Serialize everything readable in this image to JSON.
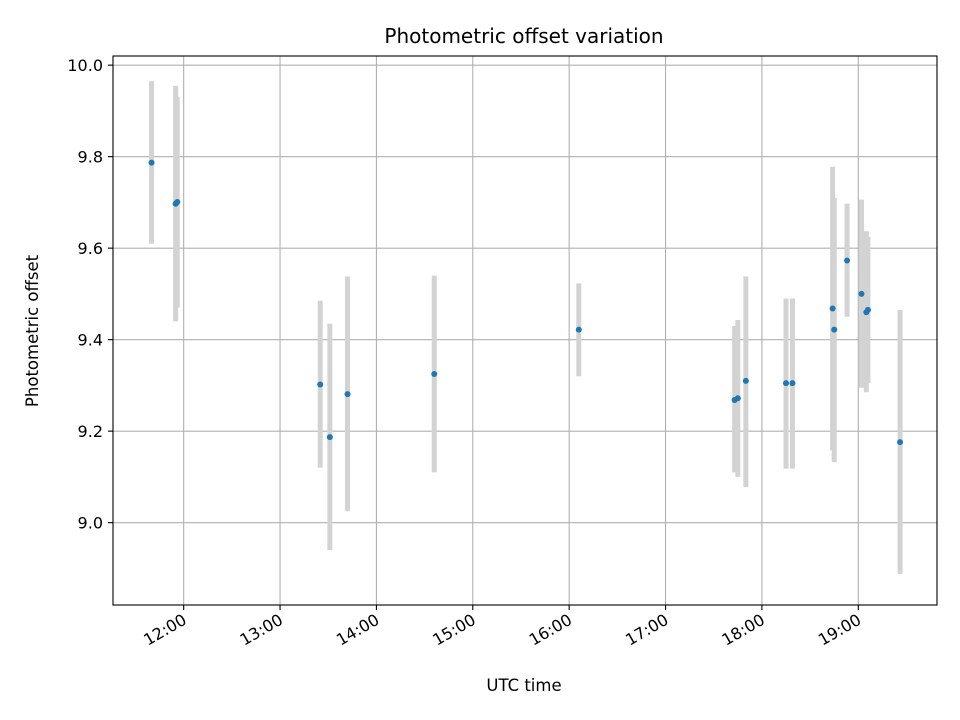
{
  "chart_data": {
    "type": "scatter",
    "title": "Photometric offset variation",
    "xlabel": "UTC time",
    "ylabel": "Photometric offset",
    "x_tick_labels": [
      "12:00",
      "13:00",
      "14:00",
      "15:00",
      "16:00",
      "17:00",
      "18:00",
      "19:00"
    ],
    "y_tick_labels": [
      "9.0",
      "9.2",
      "9.4",
      "9.6",
      "9.8",
      "10.0"
    ],
    "x_ticks": [
      "12:00",
      "13:00",
      "14:00",
      "15:00",
      "16:00",
      "17:00",
      "18:00",
      "19:00"
    ],
    "y_ticks": [
      9.0,
      9.2,
      9.4,
      9.6,
      9.8,
      10.0
    ],
    "xlim": [
      "11:16",
      "19:49"
    ],
    "ylim": [
      8.82,
      10.02
    ],
    "grid": true,
    "point_color": "#1f77b4",
    "errorbar_color": "#d3d3d3",
    "points": [
      {
        "x": "11:40",
        "y": 9.787,
        "ylow": 9.61,
        "yhigh": 9.965
      },
      {
        "x": "11:55",
        "y": 9.697,
        "ylow": 9.44,
        "yhigh": 9.955
      },
      {
        "x": "11:56",
        "y": 9.701,
        "ylow": 9.47,
        "yhigh": 9.93
      },
      {
        "x": "13:25",
        "y": 9.302,
        "ylow": 9.12,
        "yhigh": 9.485
      },
      {
        "x": "13:31",
        "y": 9.187,
        "ylow": 8.94,
        "yhigh": 9.435
      },
      {
        "x": "13:42",
        "y": 9.281,
        "ylow": 9.025,
        "yhigh": 9.538
      },
      {
        "x": "14:36",
        "y": 9.325,
        "ylow": 9.11,
        "yhigh": 9.54
      },
      {
        "x": "16:06",
        "y": 9.422,
        "ylow": 9.32,
        "yhigh": 9.523
      },
      {
        "x": "17:43",
        "y": 9.268,
        "ylow": 9.11,
        "yhigh": 9.43
      },
      {
        "x": "17:45",
        "y": 9.272,
        "ylow": 9.1,
        "yhigh": 9.443
      },
      {
        "x": "17:50",
        "y": 9.31,
        "ylow": 9.078,
        "yhigh": 9.538
      },
      {
        "x": "18:15",
        "y": 9.305,
        "ylow": 9.118,
        "yhigh": 9.49
      },
      {
        "x": "18:19",
        "y": 9.305,
        "ylow": 9.118,
        "yhigh": 9.49
      },
      {
        "x": "18:44",
        "y": 9.468,
        "ylow": 9.158,
        "yhigh": 9.778
      },
      {
        "x": "18:45",
        "y": 9.422,
        "ylow": 9.132,
        "yhigh": 9.71
      },
      {
        "x": "18:53",
        "y": 9.573,
        "ylow": 9.45,
        "yhigh": 9.697
      },
      {
        "x": "19:02",
        "y": 9.5,
        "ylow": 9.295,
        "yhigh": 9.706
      },
      {
        "x": "19:05",
        "y": 9.46,
        "ylow": 9.285,
        "yhigh": 9.637
      },
      {
        "x": "19:06",
        "y": 9.465,
        "ylow": 9.305,
        "yhigh": 9.625
      },
      {
        "x": "19:26",
        "y": 9.176,
        "ylow": 8.888,
        "yhigh": 9.465
      }
    ]
  }
}
